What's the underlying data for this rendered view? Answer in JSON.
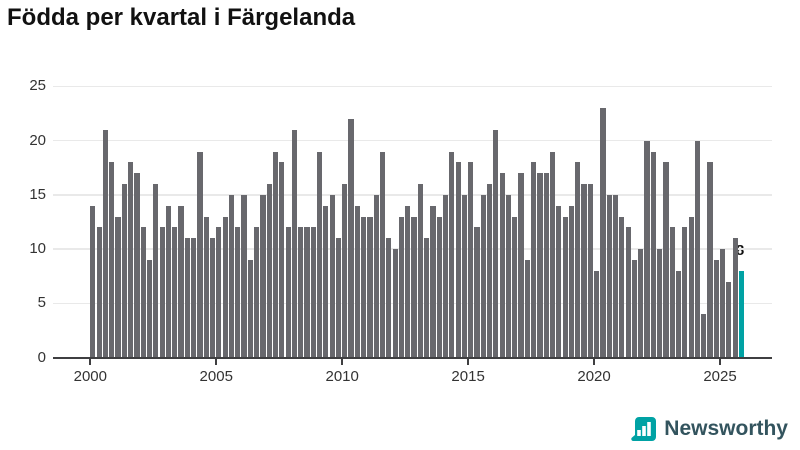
{
  "title": "Födda per kvartal i Färgelanda",
  "footer": {
    "brand": "Newsworthy"
  },
  "colors": {
    "bar": "#68686d",
    "highlight": "#00a2a4",
    "gridline": "#e9e9e9",
    "axis": "#3f3f41",
    "tick_label": "#333333",
    "title": "#111111",
    "brand_text": "#33545e",
    "brand_icon": "#00a2a4"
  },
  "chart_data": {
    "type": "bar",
    "title": "Födda per kvartal i Färgelanda",
    "x_unit": "quarter",
    "start": "2000Q1",
    "end": "2025Q4",
    "values": [
      14,
      12,
      21,
      18,
      13,
      16,
      18,
      17,
      12,
      9,
      16,
      12,
      14,
      12,
      14,
      11,
      11,
      19,
      13,
      11,
      12,
      13,
      15,
      12,
      15,
      9,
      12,
      15,
      16,
      19,
      18,
      12,
      21,
      12,
      12,
      12,
      19,
      14,
      15,
      11,
      16,
      22,
      14,
      13,
      13,
      15,
      19,
      11,
      10,
      13,
      14,
      13,
      16,
      11,
      14,
      13,
      15,
      19,
      18,
      15,
      18,
      12,
      15,
      16,
      21,
      17,
      15,
      13,
      17,
      9,
      18,
      17,
      17,
      19,
      14,
      13,
      14,
      18,
      16,
      16,
      8,
      23,
      15,
      15,
      13,
      12,
      9,
      10,
      20,
      19,
      10,
      18,
      12,
      8,
      12,
      13,
      20,
      4,
      18,
      9,
      10,
      7,
      11,
      8
    ],
    "highlight_index": 103,
    "highlight_value_label": "8",
    "ylim": [
      0,
      25
    ],
    "yticks": [
      0,
      5,
      10,
      15,
      20,
      25
    ],
    "xticks": [
      "2000",
      "2005",
      "2010",
      "2015",
      "2020",
      "2025"
    ],
    "xtick_year_step": 5,
    "grid": "horizontal",
    "legend": "none"
  }
}
